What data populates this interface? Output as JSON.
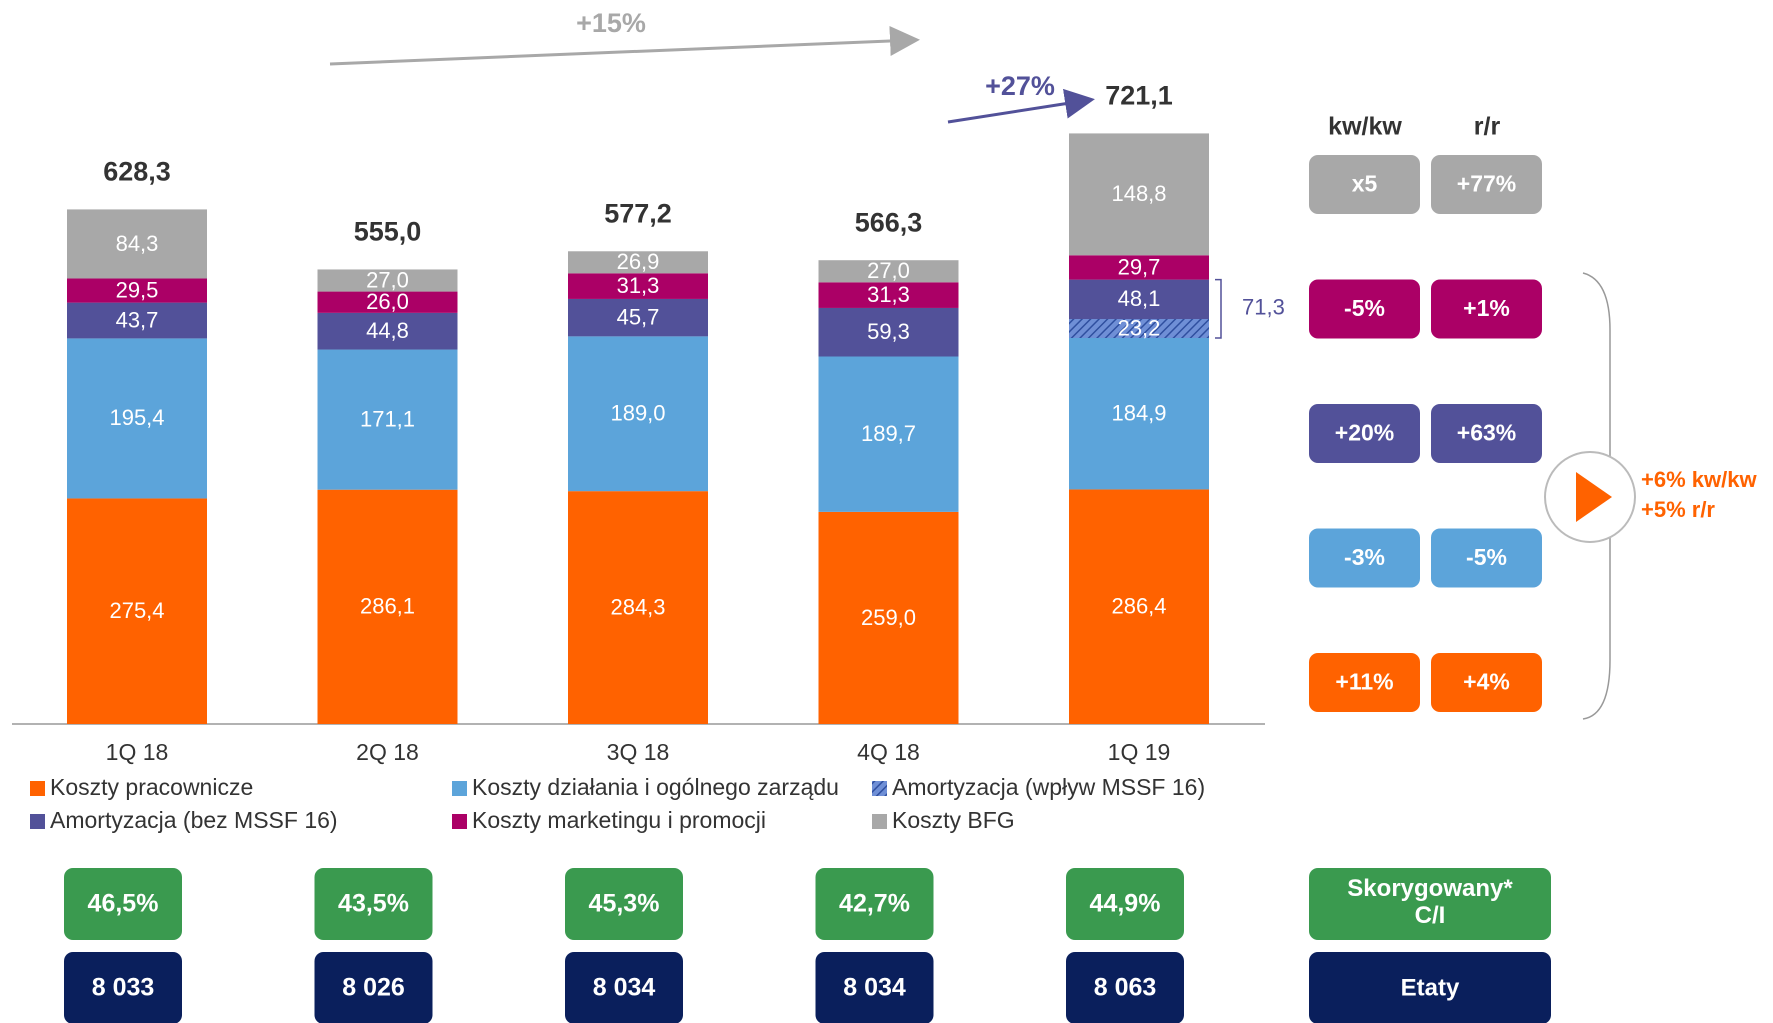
{
  "chart_data": {
    "type": "bar",
    "stacked": true,
    "categories": [
      "1Q 18",
      "2Q 18",
      "3Q 18",
      "4Q 18",
      "1Q 19"
    ],
    "series": [
      {
        "name": "Koszty pracownicze",
        "color": "#ff6200",
        "values": [
          275.4,
          286.1,
          284.3,
          259.0,
          286.4
        ],
        "value_labels": [
          "275,4",
          "286,1",
          "284,3",
          "259,0",
          "286,4"
        ]
      },
      {
        "name": "Koszty działania i ogólnego zarządu",
        "color": "#5ca4da",
        "values": [
          195.4,
          171.1,
          189.0,
          189.7,
          184.9
        ],
        "value_labels": [
          "195,4",
          "171,1",
          "189,0",
          "189,7",
          "184,9"
        ]
      },
      {
        "name": "Amortyzacja (wpływ MSSF 16)",
        "color": "#4f6fc0",
        "hatch": true,
        "values": [
          null,
          null,
          null,
          null,
          23.2
        ],
        "value_labels": [
          null,
          null,
          null,
          null,
          "23,2"
        ]
      },
      {
        "name": "Amortyzacja (bez MSSF 16)",
        "color": "#525199",
        "values": [
          43.7,
          44.8,
          45.7,
          59.3,
          48.1
        ],
        "value_labels": [
          "43,7",
          "44,8",
          "45,7",
          "59,3",
          "48,1"
        ]
      },
      {
        "name": "Koszty marketingu i promocji",
        "color": "#ab0066",
        "values": [
          29.5,
          26.0,
          31.3,
          31.3,
          29.7
        ],
        "value_labels": [
          "29,5",
          "26,0",
          "31,3",
          "31,3",
          "29,7"
        ]
      },
      {
        "name": "Koszty BFG",
        "color": "#a8a8a8",
        "values": [
          84.3,
          27.0,
          26.9,
          27.0,
          148.8
        ],
        "value_labels": [
          "84,3",
          "27,0",
          "26,9",
          "27,0",
          "148,8"
        ]
      }
    ],
    "totals": {
      "values": [
        628.3,
        555.0,
        577.2,
        566.3,
        721.1
      ],
      "value_labels": [
        "628,3",
        "555,0",
        "577,2",
        "566,3",
        "721,1"
      ]
    },
    "annotations": {
      "growth_total": "+15%",
      "growth_quarter": "+27%",
      "amortization_sum": {
        "value": 71.3,
        "label": "71,3"
      }
    },
    "changes": {
      "headers": [
        "kw/kw",
        "r/r"
      ],
      "rows": [
        {
          "color": "#a8a8a8",
          "cells": [
            "x5",
            "+77%"
          ]
        },
        {
          "color": "#ab0066",
          "cells": [
            "-5%",
            "+1%"
          ]
        },
        {
          "color": "#525199",
          "cells": [
            "+20%",
            "+63%"
          ]
        },
        {
          "color": "#5ca4da",
          "cells": [
            "-3%",
            "-5%"
          ]
        },
        {
          "color": "#ff6200",
          "cells": [
            "+11%",
            "+4%"
          ]
        }
      ],
      "summary": [
        "+6% kw/kw",
        "+5% r/r"
      ]
    },
    "ci": {
      "label": "Skorygowany* C/I",
      "color": "#3a9a4f",
      "cells": [
        "46,5%",
        "43,5%",
        "45,3%",
        "42,7%",
        "44,9%"
      ]
    },
    "fte": {
      "label": "Etaty",
      "color": "#0a1f5c",
      "cells": [
        "8 033",
        "8 026",
        "8 034",
        "8 034",
        "8 063"
      ]
    }
  }
}
